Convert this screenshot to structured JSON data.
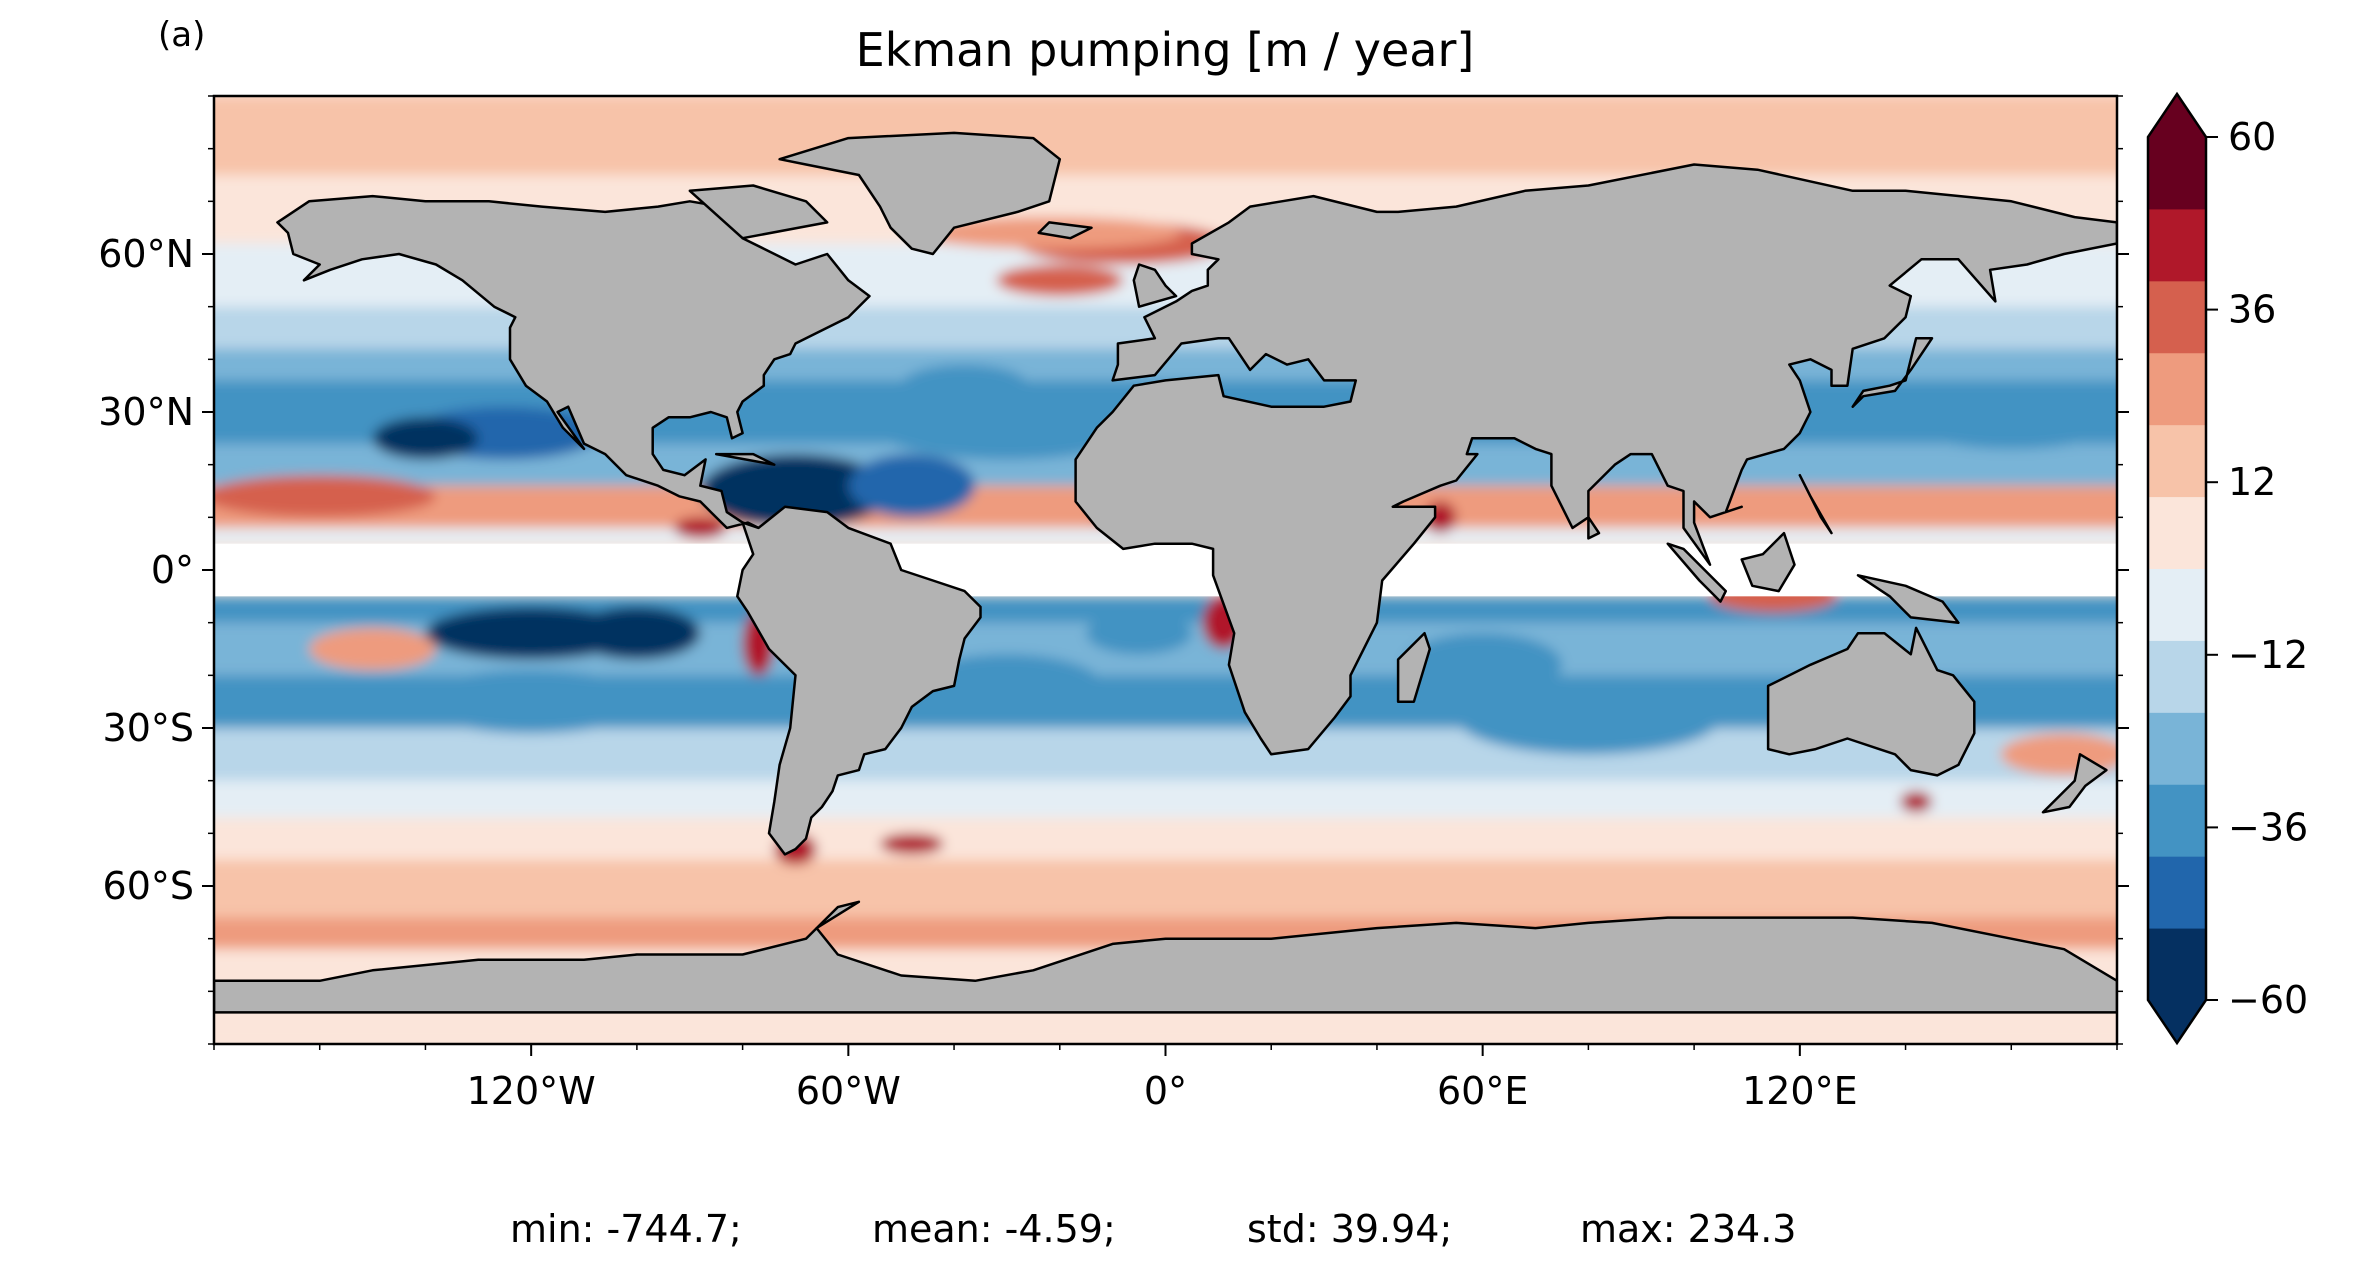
{
  "panel_label": "(a)",
  "title": "Ekman pumping [m / year]",
  "colors": {
    "land": "#b3b3b3",
    "coast": "#000000",
    "equator_band": "#ffffff"
  },
  "map": {
    "projection": "PlateCarree",
    "lon_range": [
      -180,
      180
    ],
    "lat_range": [
      -90,
      90
    ],
    "lat_ticks": [
      {
        "lat": 60,
        "label": "60°N"
      },
      {
        "lat": 30,
        "label": "30°N"
      },
      {
        "lat": 0,
        "label": "0°"
      },
      {
        "lat": -30,
        "label": "30°S"
      },
      {
        "lat": -60,
        "label": "60°S"
      }
    ],
    "lon_ticks": [
      {
        "lon": -120,
        "label": "120°W"
      },
      {
        "lon": -60,
        "label": "60°W"
      },
      {
        "lon": 0,
        "label": "0°"
      },
      {
        "lon": 60,
        "label": "60°E"
      },
      {
        "lon": 120,
        "label": "120°E"
      }
    ],
    "masked_equatorial_band_lat": [
      -5,
      5
    ]
  },
  "colorbar": {
    "ticks": [
      "60",
      "36",
      "12",
      "−12",
      "−36",
      "−60"
    ],
    "tick_values": [
      60,
      36,
      12,
      -12,
      -36,
      -60
    ],
    "range": [
      -60,
      60
    ],
    "extend": "both",
    "levels_colors": [
      "#053061",
      "#2166ac",
      "#4393c3",
      "#79b4d7",
      "#b8d6e9",
      "#e4eef5",
      "#fbe5da",
      "#f7c3a9",
      "#ee9b7e",
      "#d5604e",
      "#b0182a",
      "#67001f"
    ]
  },
  "stats": {
    "min": "min: -744.7;",
    "mean": "mean: -4.59;",
    "std": "std: 39.94;",
    "max": "max: 234.3"
  }
}
